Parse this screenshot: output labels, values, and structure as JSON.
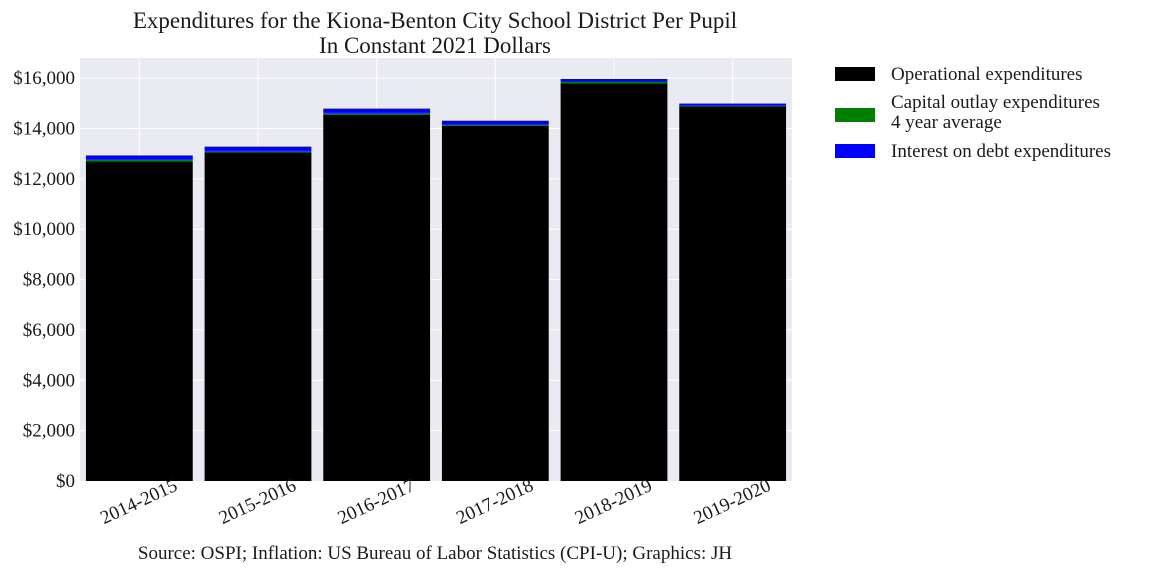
{
  "chart_data": {
    "type": "bar",
    "stacked": true,
    "title": "Expenditures for the Kiona-Benton City School District Per Pupil",
    "subtitle": "In Constant 2021 Dollars",
    "source": "Source: OSPI; Inflation: US Bureau of Labor Statistics (CPI-U); Graphics: JH",
    "categories": [
      "2014-2015",
      "2015-2016",
      "2016-2017",
      "2017-2018",
      "2018-2019",
      "2019-2020"
    ],
    "series": [
      {
        "name": "Operational expenditures",
        "color": "#000000",
        "values": [
          12700,
          13050,
          14550,
          14100,
          15800,
          14880
        ]
      },
      {
        "name": "Capital outlay expenditures",
        "name_line2": "4 year average",
        "color": "#008000",
        "values": [
          60,
          60,
          70,
          60,
          50,
          30
        ]
      },
      {
        "name": "Interest on debt expenditures",
        "color": "#0000ff",
        "values": [
          170,
          170,
          170,
          150,
          120,
          80
        ]
      }
    ],
    "y_ticks": [
      0,
      2000,
      4000,
      6000,
      8000,
      10000,
      12000,
      14000,
      16000
    ],
    "y_tick_labels": [
      "$0",
      "$2,000",
      "$4,000",
      "$6,000",
      "$8,000",
      "$10,000",
      "$12,000",
      "$14,000",
      "$16,000"
    ],
    "ylim": [
      0,
      16800
    ],
    "grid": true,
    "legend_position": "outside-right",
    "background_color": "#eaeaf2",
    "grid_color": "#ffffff"
  }
}
